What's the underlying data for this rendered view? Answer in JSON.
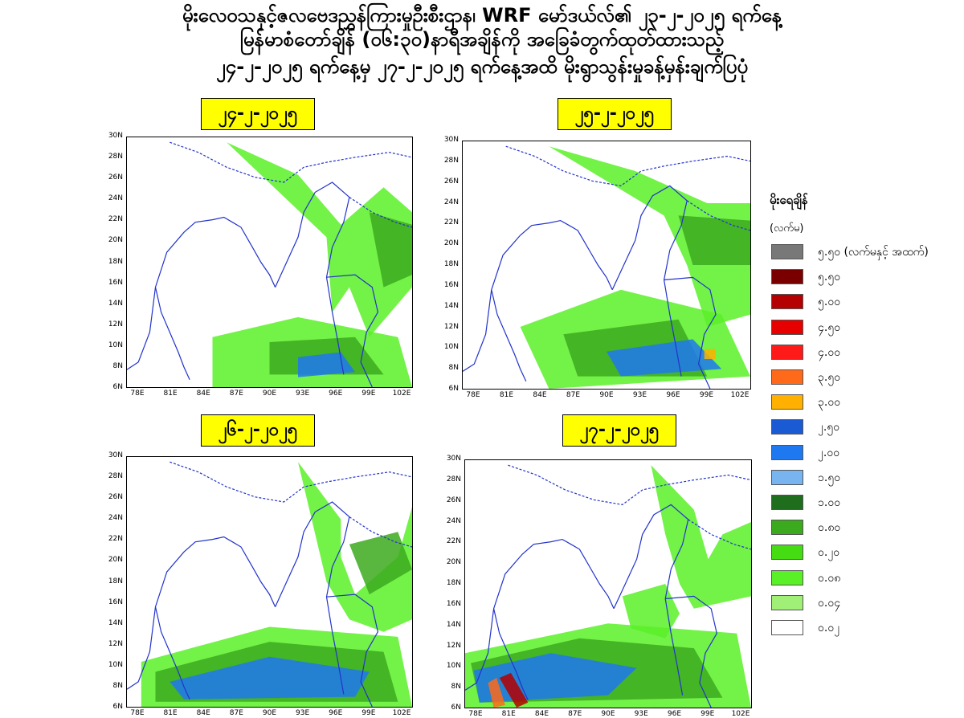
{
  "header": {
    "line1": "မိုးလေဝသနှင့်ဇလဗေဒညွှန်ကြားမှုဦးစီးဌာန၊ WRF မော်ဒယ်လ်၏ ၂၃-၂-၂၀၂၅ ရက်နေ့",
    "line2": "မြန်မာစံတော်ချိန် (၀၆:၃၀)နာရီအချိန်ကို အခြေခံတွက်ထုတ်ထားသည့်",
    "line3": "၂၄-၂-၂၀၂၅ ရက်နေ့မှ ၂၇-၂-၂၀၂၅ ရက်နေ့အထိ မိုးရွာသွန်းမှုခန့်မှန်းချက်ပြပုံ"
  },
  "panels": [
    {
      "date": "၂၄-၂-၂၀၂၅"
    },
    {
      "date": "၂၅-၂-၂၀၂၅"
    },
    {
      "date": "၂၆-၂-၂၀၂၅"
    },
    {
      "date": "၂၇-၂-၂၀၂၅"
    }
  ],
  "axes": {
    "lat_labels": [
      "30N",
      "28N",
      "26N",
      "24N",
      "22N",
      "20N",
      "18N",
      "16N",
      "14N",
      "12N",
      "10N",
      "8N",
      "6N"
    ],
    "lon_labels": [
      "78E",
      "81E",
      "84E",
      "87E",
      "90E",
      "93E",
      "96E",
      "99E",
      "102E"
    ]
  },
  "legend": {
    "title": "မိုးရေချိန်",
    "unit": "(လက်မ)",
    "items": [
      {
        "label": "၅.၅၀ (လက်မနှင့် အထက်)",
        "color": "#787878"
      },
      {
        "label": "၅.၅၀",
        "color": "#7a0000"
      },
      {
        "label": "၅.၀၀",
        "color": "#b40000"
      },
      {
        "label": "၄.၅၀",
        "color": "#e60000"
      },
      {
        "label": "၄.၀၀",
        "color": "#ff1a1a"
      },
      {
        "label": "၃.၅၀",
        "color": "#ff6a1a"
      },
      {
        "label": "၃.၀၀",
        "color": "#ffb000"
      },
      {
        "label": "၂.၅၀",
        "color": "#1a5ad2"
      },
      {
        "label": "၂.၀၀",
        "color": "#1e78f0"
      },
      {
        "label": "၁.၅၀",
        "color": "#78b4f0"
      },
      {
        "label": "၁.၀၀",
        "color": "#1e6e1e"
      },
      {
        "label": "၀.၈၀",
        "color": "#3caa1e"
      },
      {
        "label": "၀.၂၀",
        "color": "#46dc14"
      },
      {
        "label": "၀.၀၈",
        "color": "#5af028"
      },
      {
        "label": "၀.၀၄",
        "color": "#a0f078"
      },
      {
        "label": "၀.၀၂",
        "color": "#ffffff"
      }
    ]
  }
}
